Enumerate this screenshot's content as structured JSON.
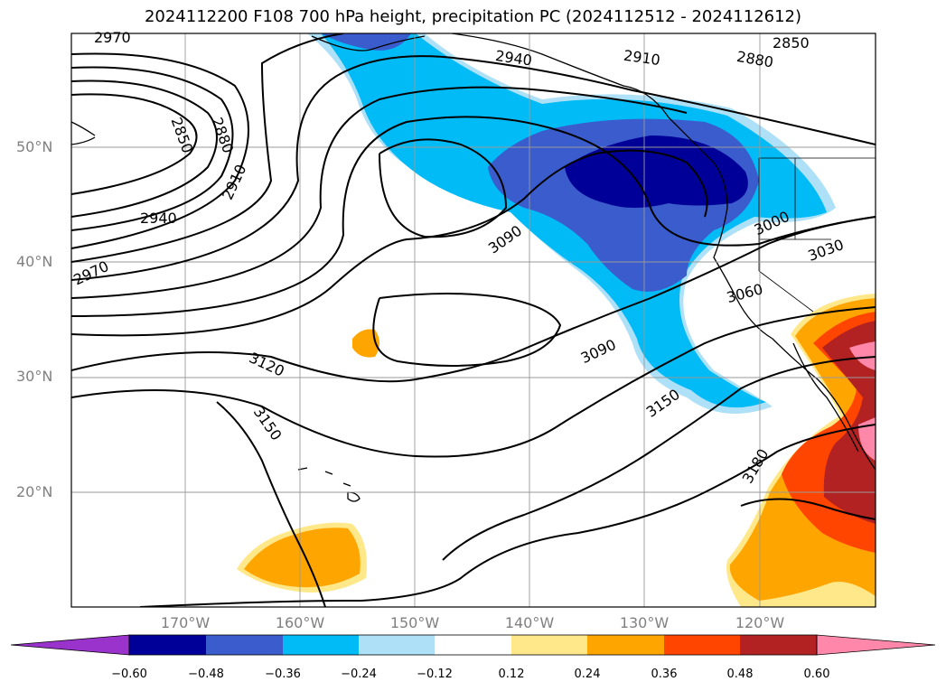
{
  "title": "2024112200 F108 700 hPa height, precipitation PC (2024112512 - 2024112612)",
  "map": {
    "lon_range": [
      -180,
      -110
    ],
    "lat_range": [
      10,
      60
    ],
    "lat_labels": [
      "50°N",
      "40°N",
      "30°N",
      "20°N"
    ],
    "lon_labels": [
      "170°W",
      "160°W",
      "150°W",
      "140°W",
      "130°W",
      "120°W"
    ],
    "gridlines": true,
    "contour_labels": [
      "2970",
      "2850",
      "2880",
      "2910",
      "2940",
      "2970",
      "3090",
      "3120",
      "3150",
      "2910",
      "2850",
      "2880",
      "2940",
      "3000",
      "3030",
      "3060",
      "3090",
      "3150",
      "3180"
    ]
  },
  "colorbar": {
    "ticks": [
      "−0.60",
      "−0.48",
      "−0.36",
      "−0.24",
      "−0.12",
      "0.12",
      "0.24",
      "0.36",
      "0.48",
      "0.60"
    ],
    "colors": [
      "#9933cc",
      "#000099",
      "#3a5ccc",
      "#00bbf5",
      "#aee1f8",
      "#ffffff",
      "#ffe88a",
      "#ffa500",
      "#ff4500",
      "#b22222",
      "#ff88aa"
    ]
  }
}
